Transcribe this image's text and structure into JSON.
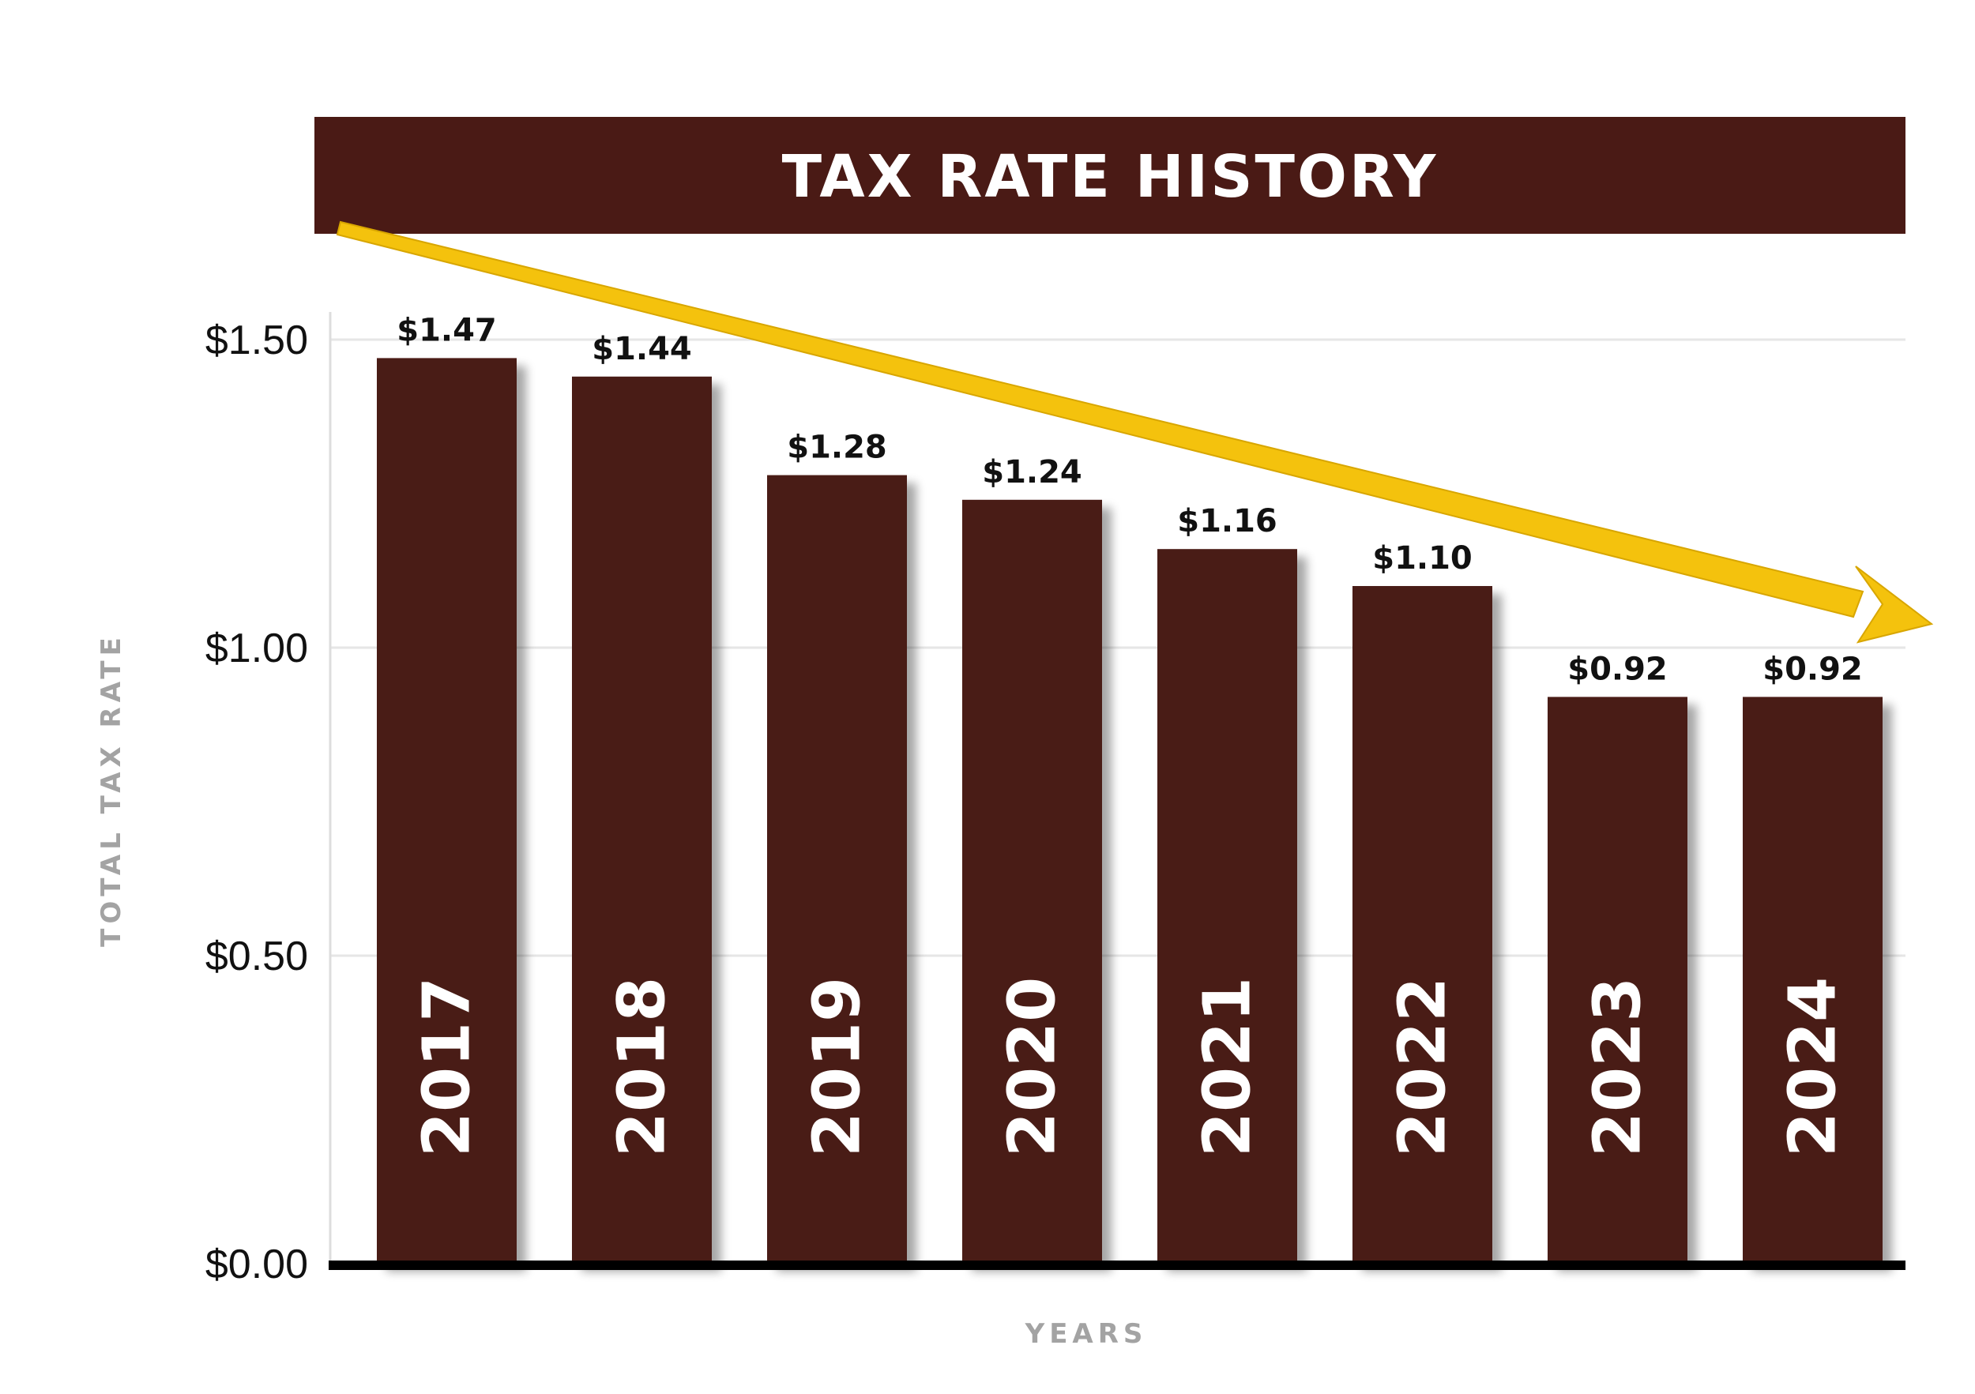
{
  "chart_data": {
    "type": "bar",
    "title": "TAX RATE HISTORY",
    "xlabel": "YEARS",
    "ylabel": "TOTAL TAX RATE",
    "categories": [
      "2017",
      "2018",
      "2019",
      "2020",
      "2021",
      "2022",
      "2023",
      "2024"
    ],
    "values": [
      1.47,
      1.44,
      1.28,
      1.24,
      1.16,
      1.1,
      0.92,
      0.92
    ],
    "value_labels": [
      "$1.47",
      "$1.44",
      "$1.28",
      "$1.24",
      "$1.16",
      "$1.10",
      "$0.92",
      "$0.92"
    ],
    "ylim": [
      0,
      1.5
    ],
    "yticks": [
      0,
      0.5,
      1.0,
      1.5
    ],
    "ytick_labels": [
      "$0.00",
      "$0.50",
      "$1.00",
      "$1.50"
    ],
    "grid": true,
    "trend_arrow": "decreasing",
    "colors": {
      "bar": "#4a1a15",
      "title_band": "#4a1a15",
      "arrow": "#f4c20d",
      "axis_title": "#a3a3a3",
      "grid": "#e6e6e6"
    }
  }
}
